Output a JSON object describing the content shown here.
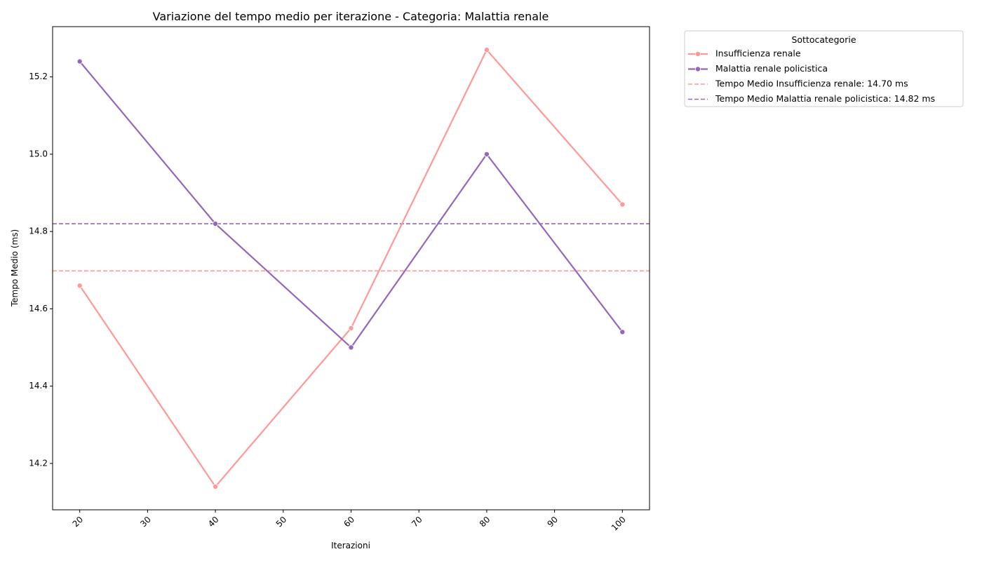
{
  "chart_data": {
    "type": "line",
    "title": "Variazione del tempo medio per iterazione - Categoria: Malattia renale",
    "xlabel": "Iterazioni",
    "ylabel": "Tempo Medio (ms)",
    "xlim": [
      16,
      104
    ],
    "ylim": [
      14.08,
      15.33
    ],
    "xticks": [
      20,
      30,
      40,
      50,
      60,
      70,
      80,
      90,
      100
    ],
    "yticks": [
      14.2,
      14.4,
      14.6,
      14.8,
      15.0,
      15.2
    ],
    "xtick_labels": [
      "20",
      "30",
      "40",
      "50",
      "60",
      "70",
      "80",
      "90",
      "100"
    ],
    "ytick_labels": [
      "14.2",
      "14.4",
      "14.6",
      "14.8",
      "15.0",
      "15.2"
    ],
    "xtick_rotation": 45,
    "grid": false,
    "legend": {
      "title": "Sottocategorie",
      "placement": "outside-top-right",
      "entries": [
        "Insufficienza renale",
        "Malattia renale policistica",
        "Tempo Medio Insufficienza renale: 14.70 ms",
        "Tempo Medio Malattia renale policistica: 14.82 ms"
      ]
    },
    "x": [
      20,
      40,
      60,
      80,
      100
    ],
    "series": [
      {
        "name": "Insufficienza renale",
        "color": "#ff9896",
        "values": [
          14.66,
          14.14,
          14.55,
          15.27,
          14.87
        ]
      },
      {
        "name": "Malattia renale policistica",
        "color": "#9467bd",
        "values": [
          15.24,
          14.82,
          14.5,
          15.0,
          14.54
        ]
      }
    ],
    "hlines": [
      {
        "name": "Tempo Medio Insufficienza renale: 14.70 ms",
        "value": 14.698,
        "color": "#ff9896",
        "style": "dashed"
      },
      {
        "name": "Tempo Medio Malattia renale policistica: 14.82 ms",
        "value": 14.82,
        "color": "#9467bd",
        "style": "dashed"
      }
    ]
  }
}
